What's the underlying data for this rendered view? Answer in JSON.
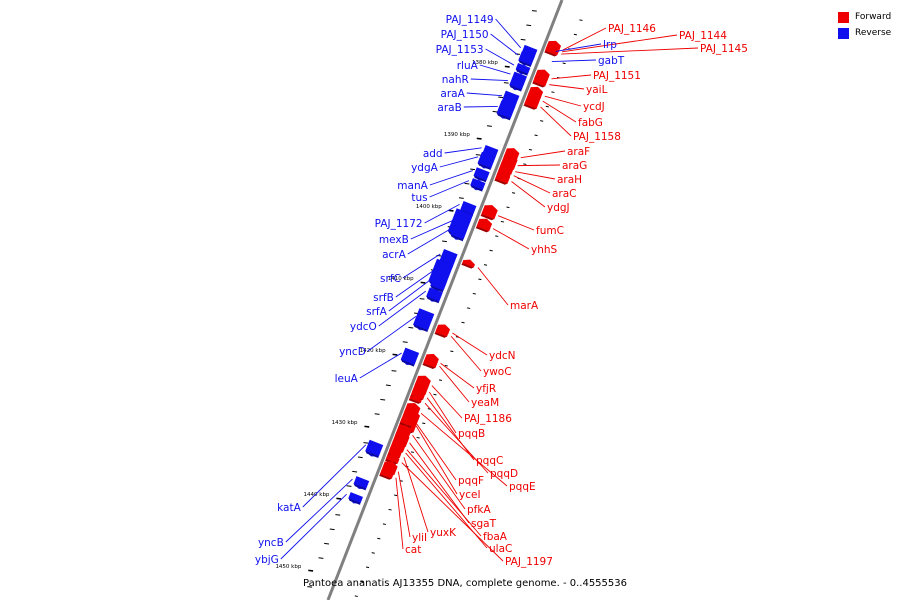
{
  "caption": "Pantoea ananatis AJ13355 DNA, complete genome. - 0..4555536",
  "legend": [
    {
      "label": "Forward",
      "color": "#ee0000"
    },
    {
      "label": "Reverse",
      "color": "#1010ee"
    }
  ],
  "colors": {
    "forward": "#ee0000",
    "reverse": "#1010ee",
    "backbone": "#808080"
  },
  "kbp_labels": [
    "1380 kbp",
    "1390 kbp",
    "1400 kbp",
    "1410 kbp",
    "1420 kbp",
    "1430 kbp",
    "1440 kbp",
    "1450 kbp"
  ],
  "forward_genes": [
    {
      "name": "PAJ_1146",
      "kbp": 1375.1,
      "len": 0.8
    },
    {
      "name": "PAJ_1144",
      "kbp": 1375.4,
      "len": 0.7
    },
    {
      "name": "PAJ_1145",
      "kbp": 1375.7,
      "len": 0.7
    },
    {
      "name": "PAJ_1151",
      "kbp": 1379.1,
      "len": 0.8
    },
    {
      "name": "yaiL",
      "kbp": 1379.9,
      "len": 0.8
    },
    {
      "name": "ycdJ",
      "kbp": 1381.5,
      "len": 0.8
    },
    {
      "name": "fabG",
      "kbp": 1382.2,
      "len": 0.8
    },
    {
      "name": "PAJ_1158",
      "kbp": 1383.0,
      "len": 0.8
    },
    {
      "name": "araF",
      "kbp": 1390.0,
      "len": 0.9
    },
    {
      "name": "araG",
      "kbp": 1390.9,
      "len": 1.3
    },
    {
      "name": "araH",
      "kbp": 1391.9,
      "len": 1.0
    },
    {
      "name": "araC",
      "kbp": 1392.6,
      "len": 0.7
    },
    {
      "name": "ydgJ",
      "kbp": 1393.3,
      "len": 0.9
    },
    {
      "name": "fumC",
      "kbp": 1397.9,
      "len": 1.2
    },
    {
      "name": "yhhS",
      "kbp": 1399.8,
      "len": 1.0
    },
    {
      "name": "marA",
      "kbp": 1405.5,
      "len": 0.4
    },
    {
      "name": "ydcN",
      "kbp": 1414.5,
      "len": 0.6
    },
    {
      "name": "ywoC",
      "kbp": 1415.0,
      "len": 0.5
    },
    {
      "name": "yfjR",
      "kbp": 1418.6,
      "len": 0.8
    },
    {
      "name": "yeaM",
      "kbp": 1419.0,
      "len": 0.8
    },
    {
      "name": "PAJ_1186",
      "kbp": 1421.6,
      "len": 1.0
    },
    {
      "name": "pqqB",
      "kbp": 1422.5,
      "len": 1.0
    },
    {
      "name": "pqqC",
      "kbp": 1423.4,
      "len": 0.8
    },
    {
      "name": "pqqD",
      "kbp": 1424.4,
      "len": 0.3
    },
    {
      "name": "pqqE",
      "kbp": 1425.4,
      "len": 1.1
    },
    {
      "name": "pqqF",
      "kbp": 1426.3,
      "len": 2.3
    },
    {
      "name": "yceI",
      "kbp": 1427.4,
      "len": 0.6
    },
    {
      "name": "pfkA",
      "kbp": 1428.5,
      "len": 1.0
    },
    {
      "name": "sgaT",
      "kbp": 1429.4,
      "len": 1.3
    },
    {
      "name": "fbaA",
      "kbp": 1430.5,
      "len": 1.0
    },
    {
      "name": "ulaC",
      "kbp": 1431.2,
      "len": 0.5
    },
    {
      "name": "yuxK",
      "kbp": 1431.8,
      "len": 0.5
    },
    {
      "name": "PAJ_1197",
      "kbp": 1432.5,
      "len": 0.6
    },
    {
      "name": "yliI",
      "kbp": 1433.5,
      "len": 1.1
    },
    {
      "name": "cat",
      "kbp": 1434.6,
      "len": 0.6
    }
  ],
  "reverse_genes": [
    {
      "name": "PAJ_1149",
      "kbp": 1376.7,
      "len": 1.0
    },
    {
      "name": "PAJ_1150",
      "kbp": 1377.6,
      "len": 1.2
    },
    {
      "name": "PAJ_1153",
      "kbp": 1379.2,
      "len": 0.8
    },
    {
      "name": "rluA",
      "kbp": 1380.4,
      "len": 0.9
    },
    {
      "name": "nahR",
      "kbp": 1381.3,
      "len": 0.9
    },
    {
      "name": "araA",
      "kbp": 1383.1,
      "len": 1.5
    },
    {
      "name": "araB",
      "kbp": 1384.5,
      "len": 1.7
    },
    {
      "name": "add",
      "kbp": 1390.6,
      "len": 1.0
    },
    {
      "name": "ydgA",
      "kbp": 1391.6,
      "len": 1.5
    },
    {
      "name": "manA",
      "kbp": 1393.7,
      "len": 1.1
    },
    {
      "name": "tus",
      "kbp": 1395.2,
      "len": 0.9
    },
    {
      "name": "PAJ_1172",
      "kbp": 1398.4,
      "len": 1.1
    },
    {
      "name": "mexB",
      "kbp": 1399.6,
      "len": 3.1
    },
    {
      "name": "acrA",
      "kbp": 1401.8,
      "len": 1.2
    },
    {
      "name": "srfC",
      "kbp": 1405.1,
      "len": 1.5
    },
    {
      "name": "srfB",
      "kbp": 1406.6,
      "len": 3.0
    },
    {
      "name": "srfA",
      "kbp": 1408.8,
      "len": 1.3
    },
    {
      "name": "ydcO",
      "kbp": 1410.4,
      "len": 1.2
    },
    {
      "name": "yncD",
      "kbp": 1413.4,
      "len": 2.2
    },
    {
      "name": "leuA",
      "kbp": 1418.8,
      "len": 1.6
    },
    {
      "name": "katA",
      "kbp": 1431.6,
      "len": 1.5
    },
    {
      "name": "yncB",
      "kbp": 1436.6,
      "len": 1.0
    },
    {
      "name": "ybjG",
      "kbp": 1438.8,
      "len": 0.8
    }
  ]
}
